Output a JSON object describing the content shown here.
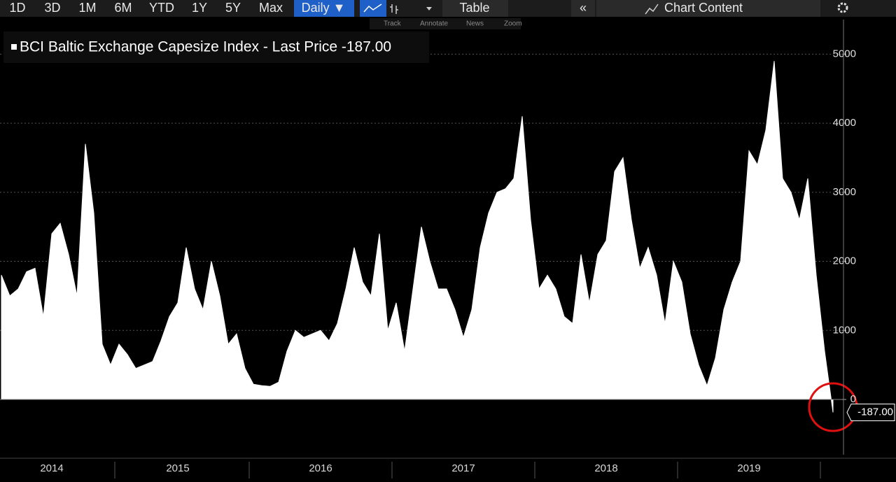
{
  "toolbar": {
    "buttons": [
      "1D",
      "3D",
      "1M",
      "6M",
      "YTD",
      "1Y",
      "5Y",
      "Max",
      "Daily ▼",
      "Table",
      "Chart Content"
    ],
    "tools": [
      "Track",
      "Annotate",
      "News",
      "Zoom"
    ]
  },
  "chart_data": {
    "type": "area",
    "title": "BCI Baltic Exchange Capesize Index - Last Price -187.00",
    "color": "#ffffff",
    "categories": [
      null,
      null,
      null,
      null,
      null,
      null,
      "2014",
      null,
      null,
      null,
      null,
      null,
      null,
      null,
      null,
      null,
      null,
      null,
      null,
      null,
      null,
      "2015",
      null,
      null,
      null,
      null,
      null,
      null,
      null,
      null,
      null,
      null,
      null,
      null,
      null,
      null,
      null,
      null,
      "2016",
      null,
      null,
      null,
      null,
      null,
      null,
      null,
      null,
      null,
      null,
      null,
      null,
      null,
      null,
      null,
      null,
      "2017",
      null,
      null,
      null,
      null,
      null,
      null,
      null,
      null,
      null,
      null,
      null,
      null,
      null,
      null,
      null,
      null,
      "2018",
      null,
      null,
      null,
      null,
      null,
      null,
      null,
      null,
      null,
      null,
      null,
      null,
      null,
      null,
      null,
      null,
      "2019",
      null,
      null,
      null,
      null,
      null,
      null,
      null,
      null,
      null,
      null
    ],
    "values": [
      1800,
      1500,
      1600,
      1850,
      1900,
      1200,
      2400,
      2550,
      2100,
      1500,
      3700,
      2700,
      800,
      500,
      800,
      650,
      450,
      500,
      550,
      850,
      1200,
      1400,
      2200,
      1600,
      1300,
      2000,
      1500,
      800,
      950,
      450,
      220,
      200,
      190,
      250,
      700,
      1000,
      900,
      950,
      1000,
      850,
      1100,
      1600,
      2200,
      1700,
      1500,
      2400,
      1000,
      1400,
      700,
      1600,
      2500,
      2000,
      1600,
      1600,
      1300,
      900,
      1300,
      2200,
      2700,
      3000,
      3050,
      3200,
      4100,
      2600,
      1600,
      1800,
      1600,
      1200,
      1100,
      2100,
      1400,
      2100,
      2300,
      3300,
      3500,
      2600,
      1900,
      2200,
      1800,
      1100,
      2000,
      1700,
      950,
      500,
      200,
      600,
      1300,
      1700,
      2000,
      3600,
      3400,
      3900,
      4900,
      3200,
      3000,
      2600,
      3200,
      1800,
      700,
      -187
    ],
    "value_labels": [
      null,
      null,
      null,
      null,
      null,
      null,
      null,
      null,
      null,
      null,
      null,
      null,
      null,
      null,
      null,
      null,
      null,
      null,
      null,
      null,
      null,
      null,
      null,
      null,
      null,
      null,
      null,
      null,
      null,
      null,
      null,
      null,
      null,
      null,
      null,
      null,
      null,
      null,
      null,
      null,
      null,
      null,
      null,
      null,
      null,
      null,
      null,
      null,
      null,
      null,
      null,
      null,
      null,
      null,
      null,
      null,
      null,
      null,
      null,
      null,
      null,
      null,
      null,
      null,
      null,
      null,
      null,
      null,
      null,
      null,
      null,
      null,
      null,
      null,
      null,
      null,
      null,
      null,
      null,
      null,
      null,
      null,
      null,
      null,
      null,
      null,
      null,
      null,
      null,
      null,
      null,
      null,
      null,
      null,
      null,
      null,
      null,
      null,
      null,
      "-187.00"
    ],
    "ylim": [
      -800,
      5500
    ],
    "yticks": [
      0,
      1000,
      2000,
      3000,
      4000,
      5000
    ],
    "grid": true
  }
}
